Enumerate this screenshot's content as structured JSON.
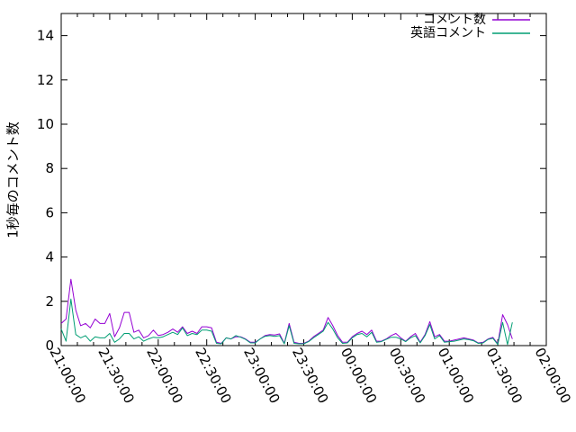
{
  "chart_data": {
    "type": "line",
    "title": "",
    "xlabel": "",
    "ylabel": "1秒毎のコメント数",
    "ylim": [
      0,
      15
    ],
    "y_ticks": [
      0,
      2,
      4,
      6,
      8,
      10,
      12,
      14
    ],
    "x_range_min": [
      0,
      300
    ],
    "x_major_interval_min": 30,
    "x_minor_interval_min": 10,
    "x_ticklabels": [
      "21:00:00",
      "21:30:00",
      "22:00:00",
      "22:30:00",
      "23:00:00",
      "23:30:00",
      "00:00:00",
      "00:30:00",
      "01:00:00",
      "01:30:00",
      "02:00:00"
    ],
    "sample_interval_min": 3,
    "grid": false,
    "legend_position": "top-right-inside",
    "axis_color": "#000000",
    "background_color": "#ffffff",
    "series": [
      {
        "name": "コメント数",
        "color": "#9400d3",
        "values": [
          1.0,
          1.2,
          3.0,
          1.6,
          0.9,
          1.0,
          0.8,
          1.2,
          1.0,
          1.0,
          1.45,
          0.4,
          0.8,
          1.5,
          1.5,
          0.6,
          0.7,
          0.35,
          0.45,
          0.7,
          0.45,
          0.5,
          0.6,
          0.75,
          0.6,
          0.85,
          0.55,
          0.65,
          0.55,
          0.85,
          0.85,
          0.8,
          0.15,
          0.1,
          0.35,
          0.3,
          0.4,
          0.4,
          0.3,
          0.15,
          0.15,
          0.3,
          0.45,
          0.5,
          0.48,
          0.53,
          0.1,
          1.0,
          0.15,
          0.1,
          0.1,
          0.2,
          0.4,
          0.55,
          0.7,
          1.27,
          0.9,
          0.45,
          0.15,
          0.15,
          0.4,
          0.55,
          0.65,
          0.5,
          0.7,
          0.2,
          0.2,
          0.3,
          0.45,
          0.55,
          0.35,
          0.2,
          0.4,
          0.55,
          0.15,
          0.5,
          1.08,
          0.4,
          0.5,
          0.2,
          0.2,
          0.25,
          0.3,
          0.35,
          0.3,
          0.25,
          0.12,
          0.15,
          0.3,
          0.37,
          0.08,
          1.4,
          0.95,
          0.3
        ]
      },
      {
        "name": "英語コメント",
        "color": "#009e73",
        "values": [
          0.75,
          0.2,
          2.1,
          0.5,
          0.35,
          0.45,
          0.2,
          0.4,
          0.35,
          0.35,
          0.55,
          0.15,
          0.3,
          0.55,
          0.55,
          0.3,
          0.4,
          0.2,
          0.3,
          0.38,
          0.35,
          0.4,
          0.5,
          0.6,
          0.5,
          0.8,
          0.45,
          0.55,
          0.5,
          0.7,
          0.7,
          0.65,
          0.1,
          0.08,
          0.35,
          0.3,
          0.45,
          0.38,
          0.28,
          0.12,
          0.12,
          0.3,
          0.42,
          0.45,
          0.42,
          0.45,
          0.08,
          0.9,
          0.1,
          0.08,
          0.08,
          0.18,
          0.35,
          0.5,
          0.65,
          1.05,
          0.75,
          0.35,
          0.1,
          0.12,
          0.35,
          0.5,
          0.55,
          0.4,
          0.6,
          0.15,
          0.18,
          0.28,
          0.38,
          0.38,
          0.3,
          0.18,
          0.35,
          0.45,
          0.12,
          0.45,
          0.95,
          0.3,
          0.45,
          0.15,
          0.18,
          0.2,
          0.25,
          0.3,
          0.27,
          0.22,
          0.1,
          0.12,
          0.28,
          0.33,
          0.05,
          1.05,
          0.05,
          1.05
        ]
      }
    ]
  }
}
